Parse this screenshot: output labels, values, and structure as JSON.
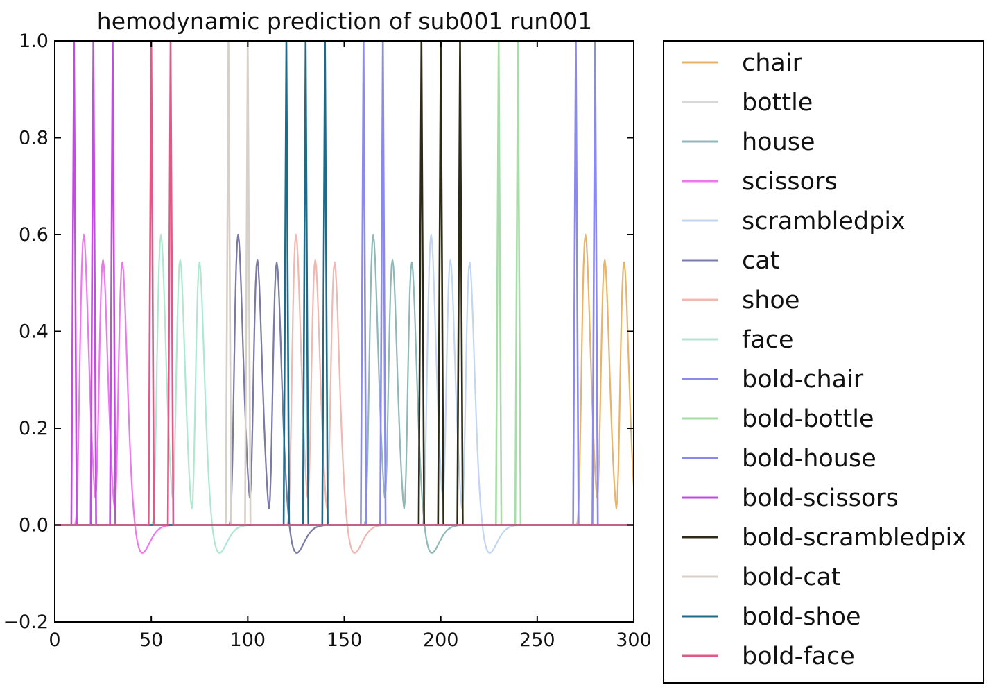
{
  "chart_data": {
    "type": "line",
    "title": "hemodynamic prediction of sub001 run001",
    "xlabel": "",
    "ylabel": "",
    "xlim": [
      0,
      300
    ],
    "ylim": [
      -0.2,
      1.0
    ],
    "x_ticks": [
      0,
      50,
      100,
      150,
      200,
      250,
      300
    ],
    "x_tick_labels": [
      "0",
      "50",
      "100",
      "150",
      "200",
      "250",
      "300"
    ],
    "y_ticks": [
      -0.2,
      0.0,
      0.2,
      0.4,
      0.6,
      0.8,
      1.0
    ],
    "y_tick_labels": [
      "−0.2",
      "0.0",
      "0.2",
      "0.4",
      "0.6",
      "0.8",
      "1.0"
    ],
    "grid": false,
    "legend_position": "outside-right",
    "series": [
      {
        "name": "chair",
        "color": "#e8b46a",
        "kind": "hrf",
        "onsets": [
          270
        ],
        "dashed": false
      },
      {
        "name": "bottle",
        "color": "#d8d8d8",
        "kind": "hrf",
        "onsets": [
          90
        ],
        "dashed": false
      },
      {
        "name": "house",
        "color": "#8fb8b8",
        "kind": "hrf",
        "onsets": [
          160
        ],
        "dashed": false
      },
      {
        "name": "scissors",
        "color": "#ee77ee",
        "kind": "hrf",
        "onsets": [
          10
        ],
        "dashed": false
      },
      {
        "name": "scrambledpix",
        "color": "#c2d6f4",
        "kind": "hrf",
        "onsets": [
          190
        ],
        "dashed": false
      },
      {
        "name": "cat",
        "color": "#7a7aa6",
        "kind": "hrf",
        "onsets": [
          90
        ],
        "dashed": false
      },
      {
        "name": "shoe",
        "color": "#f0b8b0",
        "kind": "hrf",
        "onsets": [
          120
        ],
        "dashed": false
      },
      {
        "name": "face",
        "color": "#aee8d0",
        "kind": "hrf",
        "onsets": [
          50
        ],
        "dashed": false
      },
      {
        "name": "bold-chair",
        "color": "#8a8aee",
        "kind": "block",
        "onsets": [
          270,
          280
        ],
        "dashed": false
      },
      {
        "name": "bold-bottle",
        "color": "#a8dca8",
        "kind": "block",
        "onsets": [
          230,
          240
        ],
        "dashed": false
      },
      {
        "name": "bold-house",
        "color": "#8a8aee",
        "kind": "block",
        "onsets": [
          160,
          170
        ],
        "dashed": false
      },
      {
        "name": "bold-scissors",
        "color": "#c24be0",
        "kind": "block",
        "onsets": [
          10,
          20,
          30
        ],
        "dashed": false
      },
      {
        "name": "bold-scrambledpix",
        "color": "#2d2a18",
        "kind": "block",
        "onsets": [
          190,
          200,
          210
        ],
        "dashed": false
      },
      {
        "name": "bold-cat",
        "color": "#d6d0c8",
        "kind": "block",
        "onsets": [
          90,
          100
        ],
        "dashed": false
      },
      {
        "name": "bold-shoe",
        "color": "#1e6a88",
        "kind": "block",
        "onsets": [
          120,
          130,
          140
        ],
        "dashed": false
      },
      {
        "name": "bold-face",
        "color": "#e05a88",
        "kind": "block",
        "onsets": [
          50,
          60
        ],
        "dashed": false
      }
    ]
  }
}
